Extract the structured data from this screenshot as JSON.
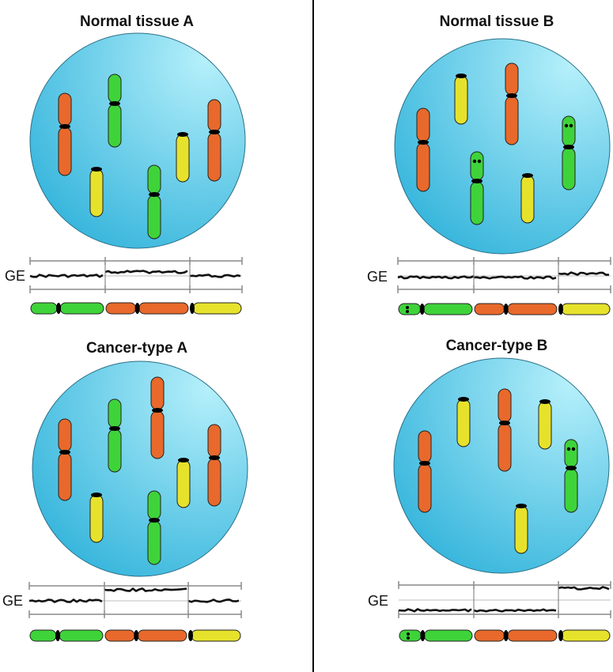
{
  "colors": {
    "cell_light": "#b6f0fb",
    "cell_dark": "#36b5dc",
    "orange": "#e8692b",
    "green": "#3fd33a",
    "yellow": "#e6e22c",
    "centromere": "#000000",
    "bracket": "#8a8a8a",
    "divider": "#000000"
  },
  "panels": [
    {
      "id": "normal-a",
      "title": "Normal tissue A",
      "ge_label": "GE",
      "ge_levels": [
        "baseline",
        "raised",
        "baseline"
      ],
      "cell_chromosomes": [
        {
          "color": "orange",
          "dots": false
        },
        {
          "color": "green",
          "dots": false
        },
        {
          "color": "yellow",
          "dots": false
        },
        {
          "color": "green",
          "dots": false
        },
        {
          "color": "yellow",
          "dots": false
        },
        {
          "color": "orange",
          "dots": false
        }
      ],
      "bar_segments": [
        {
          "color": "green",
          "dots": false
        },
        {
          "color": "orange",
          "dots": false
        },
        {
          "color": "yellow",
          "dots": false
        }
      ]
    },
    {
      "id": "normal-b",
      "title": "Normal tissue B",
      "ge_label": "GE",
      "ge_levels": [
        "baseline",
        "baseline",
        "raised"
      ],
      "cell_chromosomes": [
        {
          "color": "orange",
          "dots": false
        },
        {
          "color": "yellow",
          "dots": false
        },
        {
          "color": "orange",
          "dots": false
        },
        {
          "color": "green",
          "dots": true
        },
        {
          "color": "yellow",
          "dots": false
        },
        {
          "color": "green",
          "dots": true
        }
      ],
      "bar_segments": [
        {
          "color": "green",
          "dots": true
        },
        {
          "color": "orange",
          "dots": false
        },
        {
          "color": "yellow",
          "dots": false
        }
      ]
    },
    {
      "id": "cancer-a",
      "title": "Cancer-type A",
      "ge_label": "GE",
      "ge_levels": [
        "baseline",
        "high",
        "baseline"
      ],
      "cell_chromosomes": [
        {
          "color": "orange",
          "dots": false
        },
        {
          "color": "green",
          "dots": false
        },
        {
          "color": "orange",
          "dots": false
        },
        {
          "color": "yellow",
          "dots": false
        },
        {
          "color": "green",
          "dots": false
        },
        {
          "color": "yellow",
          "dots": false
        },
        {
          "color": "orange",
          "dots": false
        }
      ],
      "bar_segments": [
        {
          "color": "green",
          "dots": false
        },
        {
          "color": "orange",
          "dots": false
        },
        {
          "color": "yellow",
          "dots": false
        }
      ]
    },
    {
      "id": "cancer-b",
      "title": "Cancer-type B",
      "ge_label": "GE",
      "ge_levels": [
        "low",
        "baseline",
        "high"
      ],
      "cell_chromosomes": [
        {
          "color": "orange",
          "dots": false
        },
        {
          "color": "yellow",
          "dots": false
        },
        {
          "color": "orange",
          "dots": false
        },
        {
          "color": "yellow",
          "dots": false
        },
        {
          "color": "yellow",
          "dots": false
        },
        {
          "color": "green",
          "dots": true
        }
      ],
      "bar_segments": [
        {
          "color": "green",
          "dots": true
        },
        {
          "color": "orange",
          "dots": false
        },
        {
          "color": "yellow",
          "dots": false
        }
      ]
    }
  ]
}
